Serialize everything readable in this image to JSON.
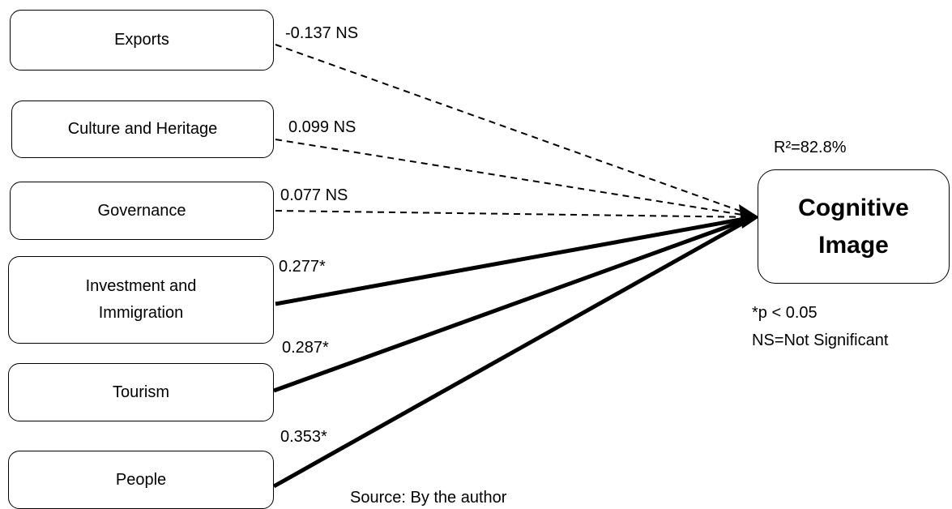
{
  "predictors": [
    {
      "label": "Exports",
      "coef": "-0.137 NS"
    },
    {
      "label": "Culture and Heritage",
      "coef": "0.099 NS"
    },
    {
      "label": "Governance",
      "coef": "0.077 NS"
    },
    {
      "label": "Investment and Immigration",
      "coef": "0.277*"
    },
    {
      "label": "Tourism",
      "coef": "0.287*"
    },
    {
      "label": "People",
      "coef": "0.353*"
    }
  ],
  "outcome": {
    "label": "Cognitive Image",
    "r_squared": "R²=82.8%"
  },
  "legend": {
    "sig": "*p < 0.05",
    "ns": "NS=Not Significant"
  },
  "source": "Source: By the author"
}
